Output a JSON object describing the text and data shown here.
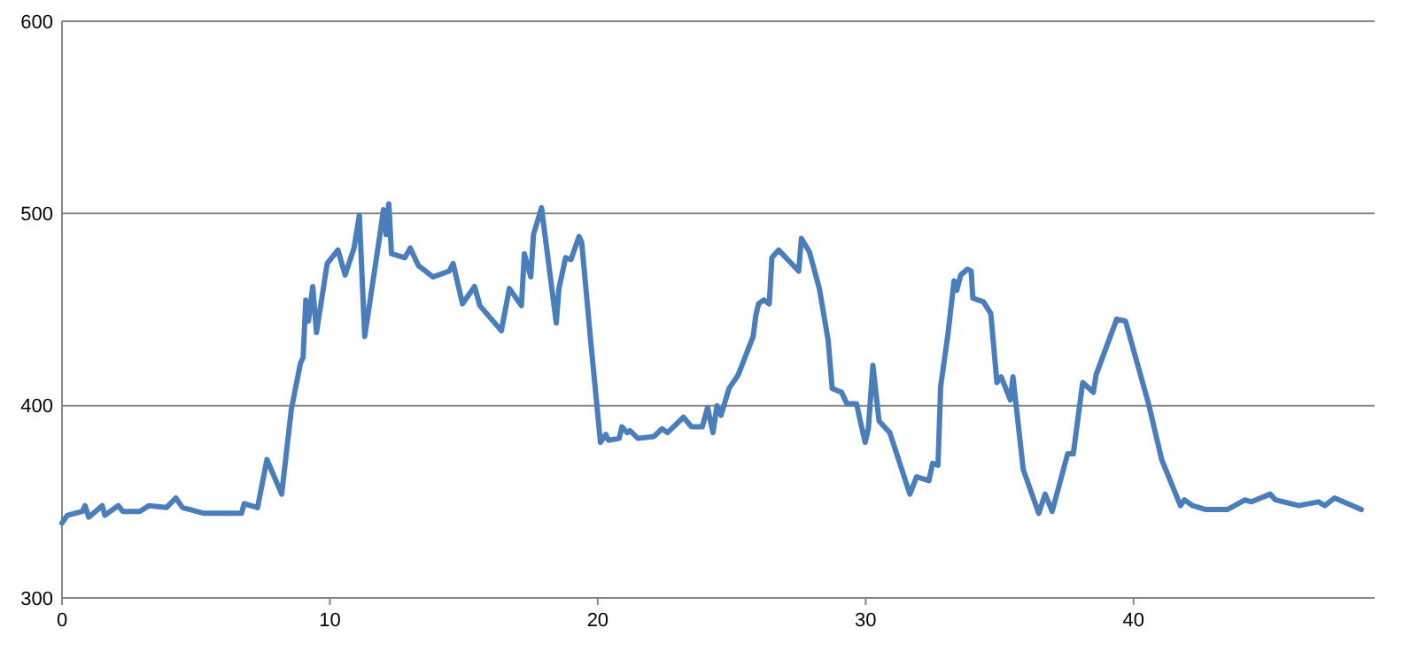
{
  "chart_data": {
    "type": "line",
    "color": "#4a7ebb",
    "grid": "y",
    "xlim": [
      0,
      49
    ],
    "xticks": [
      0,
      10,
      20,
      30,
      40
    ],
    "ylim": [
      300,
      600
    ],
    "yticks": [
      300,
      400,
      500,
      600
    ],
    "x": [
      0,
      0.2,
      0.76,
      0.86,
      1.0,
      1.5,
      1.6,
      2.1,
      2.27,
      2.9,
      3.24,
      3.9,
      4.25,
      4.5,
      5.3,
      6.7,
      6.8,
      7.3,
      7.65,
      8.2,
      8.56,
      8.9,
      9.0,
      9.1,
      9.2,
      9.36,
      9.5,
      9.9,
      10.3,
      10.57,
      10.9,
      11.1,
      11.3,
      11.9,
      12.0,
      12.1,
      12.2,
      12.3,
      12.8,
      13.0,
      13.3,
      13.85,
      14.45,
      14.6,
      14.95,
      15.4,
      15.6,
      16.4,
      16.7,
      17.15,
      17.26,
      17.5,
      17.6,
      17.9,
      18.45,
      18.55,
      18.8,
      19.0,
      19.3,
      19.4,
      19.74,
      20.1,
      20.3,
      20.4,
      20.8,
      20.9,
      21.1,
      21.2,
      21.5,
      22.1,
      22.4,
      22.6,
      23.2,
      23.5,
      23.9,
      24.1,
      24.3,
      24.45,
      24.6,
      24.9,
      25.24,
      25.8,
      25.9,
      26.0,
      26.2,
      26.4,
      26.5,
      26.75,
      27.5,
      27.6,
      27.9,
      28.27,
      28.6,
      28.75,
      29.1,
      29.3,
      29.66,
      29.8,
      29.98,
      30.1,
      30.27,
      30.5,
      30.9,
      31.65,
      31.9,
      32.36,
      32.5,
      32.7,
      32.8,
      33.07,
      33.3,
      33.4,
      33.55,
      33.8,
      33.94,
      34.0,
      34.4,
      34.67,
      34.9,
      35.06,
      35.4,
      35.5,
      35.88,
      36.46,
      36.7,
      36.96,
      37.54,
      37.75,
      38.1,
      38.5,
      38.6,
      39.37,
      39.7,
      40.56,
      41.05,
      41.75,
      41.9,
      42.2,
      42.7,
      43.4,
      43.5,
      44.16,
      44.4,
      45.1,
      45.3,
      46.17,
      46.9,
      47.14,
      47.5,
      48.5
    ],
    "values": [
      339,
      343,
      345,
      348,
      342,
      348,
      343,
      348,
      345,
      345,
      348,
      347,
      352,
      347,
      344,
      344,
      349,
      347,
      372,
      354,
      398,
      422,
      425,
      455,
      444,
      462,
      438,
      474,
      481,
      468,
      482,
      499,
      436,
      492,
      502,
      489,
      505,
      479,
      477,
      482,
      473,
      467,
      470,
      474,
      453,
      462,
      452,
      439,
      461,
      452,
      479,
      467,
      489,
      503,
      443,
      461,
      477,
      476,
      488,
      485,
      433,
      381,
      385,
      382,
      383,
      389,
      386,
      387,
      383,
      384,
      388,
      386,
      394,
      389,
      389,
      399,
      386,
      400,
      395,
      409,
      416,
      436,
      447,
      453,
      455,
      453,
      477,
      481,
      470,
      487,
      480,
      461,
      434,
      409,
      407,
      401,
      401,
      392,
      381,
      388,
      421,
      392,
      386,
      354,
      363,
      361,
      370,
      369,
      410,
      437,
      465,
      460,
      468,
      471,
      470,
      456,
      454,
      448,
      412,
      415,
      403,
      415,
      367,
      344,
      354,
      345,
      375,
      375,
      412,
      407,
      416,
      445,
      444,
      401,
      372,
      348,
      351,
      348,
      346,
      346,
      346,
      351,
      350,
      354,
      351,
      348,
      350,
      348,
      352,
      346
    ]
  }
}
